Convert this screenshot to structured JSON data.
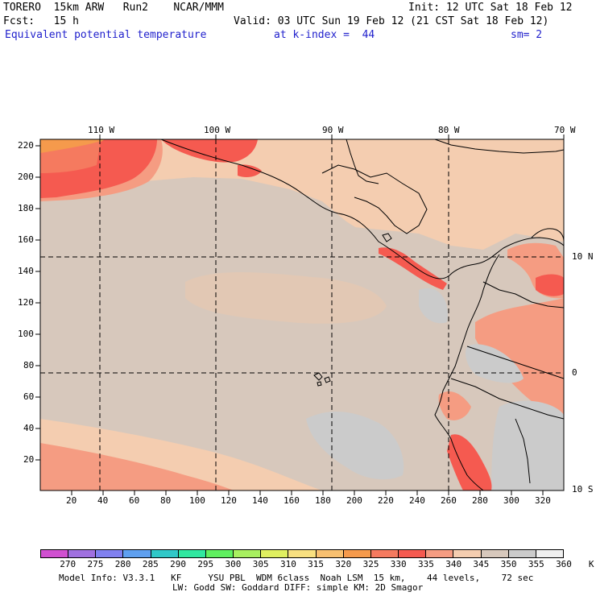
{
  "header": {
    "line1_left": "TORERO  15km ARW   Run2    NCAR/MMM",
    "line1_right": "Init: 12 UTC Sat 18 Feb 12",
    "line2_left": "Fcst:   15 h",
    "line2_right": "Valid: 03 UTC Sun 19 Feb 12 (21 CST Sat 18 Feb 12)",
    "field": "Equivalent potential temperature",
    "level": "at k-index =  44",
    "smoothing": "sm= 2"
  },
  "map": {
    "top_lon_labels": [
      "110 W",
      "100 W",
      "90 W",
      "80 W",
      "70 W"
    ],
    "right_lat_labels": [
      "10 N",
      "0",
      "10 S"
    ],
    "y_ticks": [
      "220",
      "200",
      "180",
      "160",
      "140",
      "120",
      "100",
      "80",
      "60",
      "40",
      "20"
    ],
    "x_ticks": [
      "20",
      "40",
      "60",
      "80",
      "100",
      "120",
      "140",
      "160",
      "180",
      "200",
      "220",
      "240",
      "260",
      "280",
      "300",
      "320"
    ],
    "colors": {
      "background_345": "#d7c8bc",
      "cool_350": "#cbcbcb",
      "warm_340": "#f4cdb0",
      "warm_335": "#f59c82",
      "hot_330": "#f55a50",
      "hot_325": "#f57a5f",
      "hot_320": "#f59a4c"
    }
  },
  "legend": {
    "labels": [
      "270",
      "275",
      "280",
      "285",
      "290",
      "295",
      "300",
      "305",
      "310",
      "315",
      "320",
      "325",
      "330",
      "335",
      "340",
      "345",
      "350",
      "355",
      "360",
      "K"
    ],
    "colors": [
      "#d050d0",
      "#a070e0",
      "#8080f0",
      "#5fa0f0",
      "#30c8c8",
      "#30e8a0",
      "#60f060",
      "#a8f060",
      "#e0f060",
      "#f8e080",
      "#f8c070",
      "#f59a4c",
      "#f57a5f",
      "#f55a50",
      "#f59c82",
      "#f4cdb0",
      "#d7c8bc",
      "#cbcbcb",
      "#f0f0f0"
    ]
  },
  "footer": {
    "line1": "Model Info: V3.3.1   KF     YSU PBL  WDM 6class  Noah LSM  15 km,    44 levels,    72 sec",
    "line2": "LW: Godd SW: Goddard DIFF: simple KM: 2D Smagor"
  }
}
